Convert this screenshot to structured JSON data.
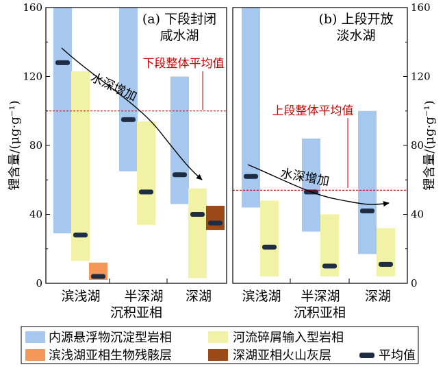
{
  "chart_data": {
    "type": "range-bar",
    "y_axis": {
      "label": "锂含量/(μg·g⁻¹)",
      "range": [
        0,
        160
      ],
      "ticks": [
        "0",
        "40",
        "80",
        "120",
        "160"
      ]
    },
    "x_axis": {
      "title": "沉积亚相"
    },
    "series_names": {
      "endogenous": "内源悬浮物沉淀型岩相",
      "river": "河流碎屑输入型岩相",
      "littoral_bio": "滨浅湖亚相生物残骸层",
      "deep_ash": "深湖亚相火山灰层",
      "mean": "平均值"
    },
    "colors": {
      "endogenous": "#a6c8ee",
      "river": "#f2f2a6",
      "littoral_bio": "#f4985a",
      "deep_ash": "#9c4a17",
      "mean": "#1f2d44",
      "threshold": "#d10000",
      "trend": "#000000"
    },
    "panels": [
      {
        "title_line1": "(a) 下段封闭",
        "title_line2": "咸水湖",
        "threshold_value": 100,
        "threshold_label": "下段整体平均值",
        "trend_label": "水深增加",
        "groups": [
          {
            "category": "滨浅湖",
            "endogenous": {
              "min": 29,
              "max": 160,
              "mean": 128
            },
            "river": {
              "min": 13,
              "max": 123,
              "mean": 28
            },
            "extra": {
              "series": "littoral_bio",
              "min": 2,
              "max": 12,
              "mean": 4
            }
          },
          {
            "category": "半深湖",
            "endogenous": {
              "min": 65,
              "max": 160,
              "mean": 95
            },
            "river": {
              "min": 34,
              "max": 94,
              "mean": 53
            }
          },
          {
            "category": "深湖",
            "endogenous": {
              "min": 46,
              "max": 120,
              "mean": 63
            },
            "river": {
              "min": 3,
              "max": 55,
              "mean": 40
            },
            "extra": {
              "series": "deep_ash",
              "min": 31,
              "max": 45,
              "mean": 35
            }
          }
        ]
      },
      {
        "title_line1": "(b) 上段开放",
        "title_line2": "淡水湖",
        "threshold_value": 54,
        "threshold_label": "上段整体平均值",
        "trend_label": "水深增加",
        "groups": [
          {
            "category": "滨浅湖",
            "endogenous": {
              "min": 44,
              "max": 160,
              "mean": 62
            },
            "river": {
              "min": 4,
              "max": 48,
              "mean": 21
            }
          },
          {
            "category": "半深湖",
            "endogenous": {
              "min": 30,
              "max": 84,
              "mean": 53
            },
            "river": {
              "min": 4,
              "max": 40,
              "mean": 10
            }
          },
          {
            "category": "深湖",
            "endogenous": {
              "min": 17,
              "max": 100,
              "mean": 42
            },
            "river": {
              "min": 4,
              "max": 32,
              "mean": 11
            }
          }
        ]
      }
    ]
  }
}
